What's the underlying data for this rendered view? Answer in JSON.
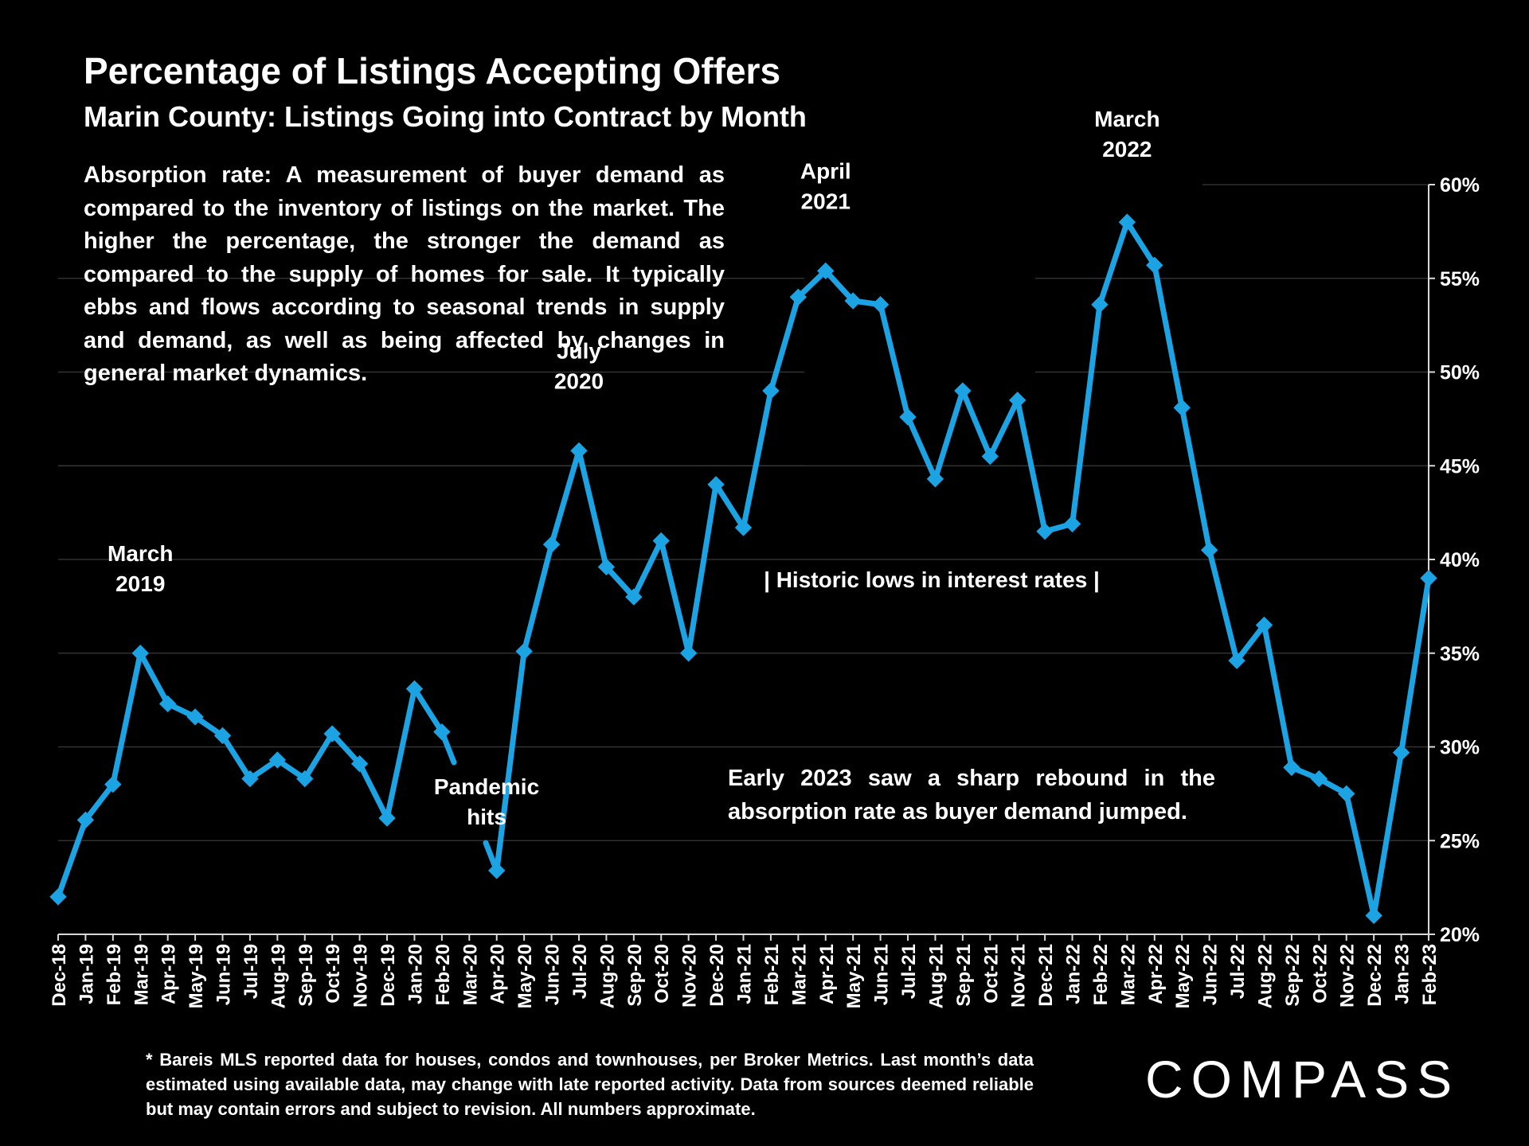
{
  "title": "Percentage of Listings Accepting Offers",
  "subtitle": "Marin County: Listings Going into Contract by Month",
  "description": "Absorption rate:  A measurement of buyer demand as compared to the inventory of listings on the market. The higher the percentage, the stronger the demand as compared to the supply of homes for sale. It typically ebbs and flows according to seasonal trends in supply and demand, as well as being affected by changes in general market dynamics.",
  "footnote": "* Bareis MLS reported data for houses, condos and townhouses, per Broker Metrics. Last month’s data estimated using available data, may change with late reported activity. Data from sources deemed reliable but may contain errors and subject to revision. All numbers approximate.",
  "logo_text": "COMPASS",
  "colors": {
    "line": "#1ca3e4",
    "background": "#000000",
    "grid": "#3a3a3a",
    "text": "#ffffff"
  },
  "chart_data": {
    "type": "line",
    "title": "Percentage of Listings Accepting Offers",
    "xlabel": "",
    "ylabel": "",
    "ylim": [
      20,
      60
    ],
    "y_ticks": [
      20,
      25,
      30,
      35,
      40,
      45,
      50,
      55,
      60
    ],
    "y_tick_labels": [
      "20%",
      "25%",
      "30%",
      "35%",
      "40%",
      "45%",
      "50%",
      "55%",
      "60%"
    ],
    "y_axis_side": "right",
    "grid": true,
    "categories": [
      "Dec-18",
      "Jan-19",
      "Feb-19",
      "Mar-19",
      "Apr-19",
      "May-19",
      "Jun-19",
      "Jul-19",
      "Aug-19",
      "Sep-19",
      "Oct-19",
      "Nov-19",
      "Dec-19",
      "Jan-20",
      "Feb-20",
      "Mar-20",
      "Apr-20",
      "May-20",
      "Jun-20",
      "Jul-20",
      "Aug-20",
      "Sep-20",
      "Oct-20",
      "Nov-20",
      "Dec-20",
      "Jan-21",
      "Feb-21",
      "Mar-21",
      "Apr-21",
      "May-21",
      "Jun-21",
      "Jul-21",
      "Aug-21",
      "Sep-21",
      "Oct-21",
      "Nov-21",
      "Dec-21",
      "Jan-22",
      "Feb-22",
      "Mar-22",
      "Apr-22",
      "May-22",
      "Jun-22",
      "Jul-22",
      "Aug-22",
      "Sep-22",
      "Oct-22",
      "Nov-22",
      "Dec-22",
      "Jan-23",
      "Feb-23"
    ],
    "series": [
      {
        "name": "Absorption rate",
        "values": [
          22.0,
          26.1,
          28.0,
          35.0,
          32.3,
          31.6,
          30.6,
          28.3,
          29.3,
          28.3,
          30.7,
          29.1,
          26.2,
          33.1,
          30.8,
          null,
          23.4,
          35.1,
          40.8,
          45.8,
          39.6,
          38.0,
          41.0,
          35.0,
          44.0,
          41.7,
          49.0,
          54.0,
          55.4,
          53.8,
          53.6,
          47.6,
          44.3,
          49.0,
          45.5,
          48.5,
          41.5,
          41.9,
          53.6,
          58.0,
          55.7,
          48.1,
          40.5,
          34.6,
          36.5,
          28.9,
          28.3,
          27.5,
          21.0,
          29.7,
          39.0
        ],
        "gap_segment": {
          "from": "Feb-20",
          "to": "Apr-20",
          "note": "line segment hidden behind annotation"
        }
      }
    ],
    "annotations": [
      {
        "label_lines": [
          "March",
          "2019"
        ],
        "category": "Mar-19"
      },
      {
        "label_lines": [
          "July",
          "2020"
        ],
        "category": "Jul-20"
      },
      {
        "label_lines": [
          "April",
          "2021"
        ],
        "category": "Apr-21"
      },
      {
        "label_lines": [
          "March",
          "2022"
        ],
        "category": "Mar-22"
      },
      {
        "label_lines": [
          "Pandemic",
          "hits"
        ],
        "category": "Mar-20"
      },
      {
        "label_lines": [
          "| Historic lows in interest rates |"
        ],
        "category": "Jun-21"
      }
    ],
    "note": "Early 2023 saw a sharp rebound in the absorption rate as buyer demand jumped."
  }
}
